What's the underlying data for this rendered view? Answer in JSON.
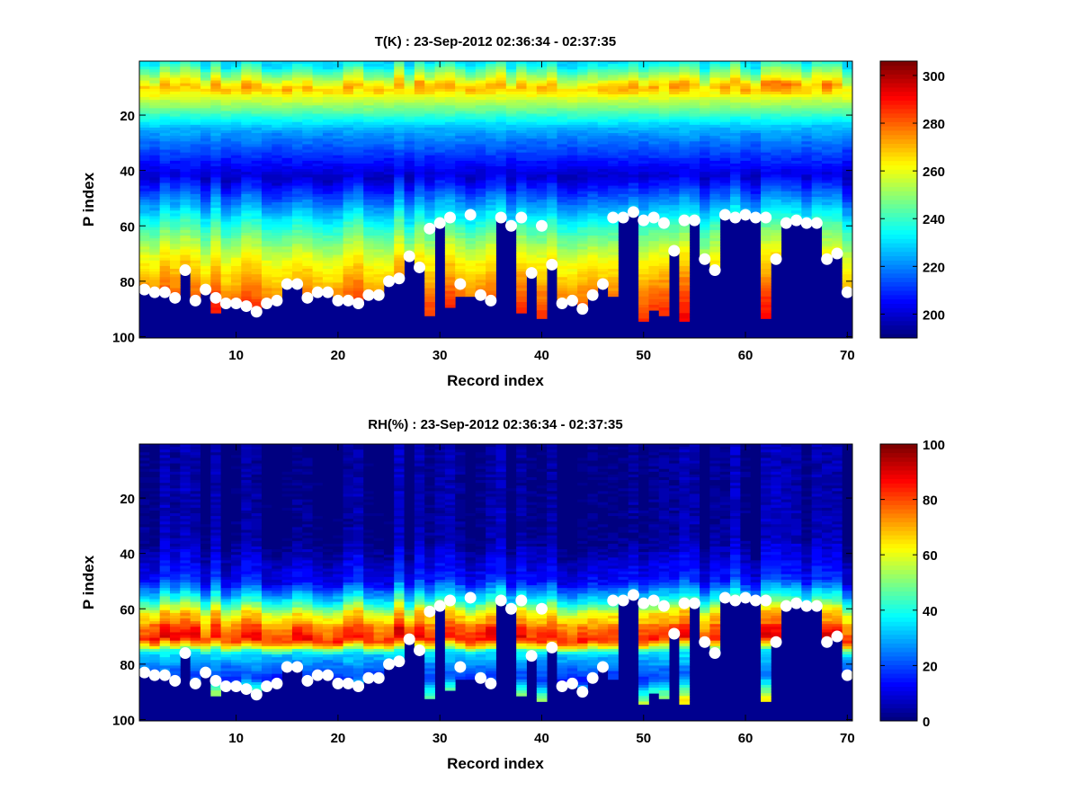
{
  "chart_data": [
    {
      "type": "heatmap",
      "title": "T(K) : 23-Sep-2012 02:36:34 - 02:37:35",
      "xlabel": "Record index",
      "ylabel": "P index",
      "xlim": [
        0.5,
        70.5
      ],
      "ylim": [
        0.5,
        100.5
      ],
      "y_reversed": true,
      "xticks": [
        10,
        20,
        30,
        40,
        50,
        60,
        70
      ],
      "yticks": [
        20,
        40,
        60,
        80,
        100
      ],
      "colormap": "jet",
      "clim": [
        190,
        306
      ],
      "colorbar_ticks": [
        200,
        220,
        240,
        260,
        280,
        300
      ],
      "fill_color": "#00008f",
      "profile_description": "T by P index: ~235 at top, peak ~270 near P=10, minimum ~200 near P=42, ~240 at P=60, ~262 at P=72, ~280 at P=86, ~287 at P=92",
      "profile_levels": [
        1,
        10,
        25,
        42,
        60,
        72,
        86,
        94
      ],
      "profile_values": [
        232,
        270,
        225,
        200,
        240,
        262,
        280,
        288
      ]
    },
    {
      "type": "heatmap",
      "title": "RH(%) : 23-Sep-2012 02:36:34 - 02:37:35",
      "xlabel": "Record index",
      "ylabel": "P index",
      "xlim": [
        0.5,
        70.5
      ],
      "ylim": [
        0.5,
        100.5
      ],
      "y_reversed": true,
      "xticks": [
        10,
        20,
        30,
        40,
        50,
        60,
        70
      ],
      "yticks": [
        20,
        40,
        60,
        80,
        100
      ],
      "colormap": "jet",
      "clim": [
        0,
        100
      ],
      "colorbar_ticks": [
        0,
        20,
        40,
        60,
        80,
        100
      ],
      "fill_color": "#00008f",
      "profile_description": "RH by P index: ~2 above P=35, ~15 at P=50, ~40 at P=58, ~65 at P=62, ~82 at P=71, ~35 at P=76, ~18 at P=85",
      "profile_levels": [
        1,
        35,
        50,
        57,
        62,
        71,
        76,
        85,
        94
      ],
      "profile_values": [
        2,
        3,
        15,
        40,
        65,
        82,
        35,
        18,
        60
      ]
    }
  ],
  "markers": {
    "description": "Surface level (P index) per record, white dots",
    "records": [
      1,
      2,
      3,
      4,
      5,
      6,
      7,
      8,
      9,
      10,
      11,
      12,
      13,
      14,
      15,
      16,
      17,
      18,
      19,
      20,
      21,
      22,
      23,
      24,
      25,
      26,
      27,
      28,
      29,
      30,
      31,
      32,
      33,
      34,
      35,
      36,
      37,
      38,
      39,
      40,
      41,
      42,
      43,
      44,
      45,
      46,
      47,
      48,
      49,
      50,
      51,
      52,
      53,
      54,
      55,
      56,
      57,
      58,
      59,
      60,
      61,
      62,
      63,
      64,
      65,
      66,
      67,
      68,
      69,
      70
    ],
    "surface_p_index": [
      83,
      84,
      84,
      86,
      76,
      87,
      83,
      86,
      88,
      88,
      89,
      91,
      88,
      87,
      81,
      81,
      86,
      84,
      84,
      87,
      87,
      88,
      85,
      85,
      80,
      79,
      71,
      75,
      61,
      59,
      57,
      81,
      56,
      85,
      87,
      57,
      60,
      57,
      77,
      60,
      74,
      88,
      87,
      90,
      85,
      81,
      57,
      57,
      55,
      58,
      57,
      59,
      69,
      58,
      58,
      72,
      76,
      56,
      57,
      56,
      57,
      57,
      72,
      59,
      58,
      59,
      59,
      72,
      70,
      84
    ],
    "fill_bottom_p_index": [
      83,
      84,
      84,
      86,
      76,
      87,
      83,
      91,
      88,
      88,
      89,
      91,
      88,
      87,
      81,
      81,
      86,
      84,
      84,
      87,
      87,
      88,
      85,
      85,
      80,
      79,
      71,
      75,
      92,
      59,
      89,
      85,
      85,
      85,
      87,
      57,
      60,
      91,
      77,
      93,
      74,
      88,
      87,
      90,
      85,
      81,
      85,
      57,
      55,
      94,
      90,
      92,
      69,
      94,
      58,
      72,
      76,
      56,
      57,
      56,
      57,
      93,
      72,
      59,
      58,
      59,
      59,
      72,
      70,
      84
    ]
  }
}
